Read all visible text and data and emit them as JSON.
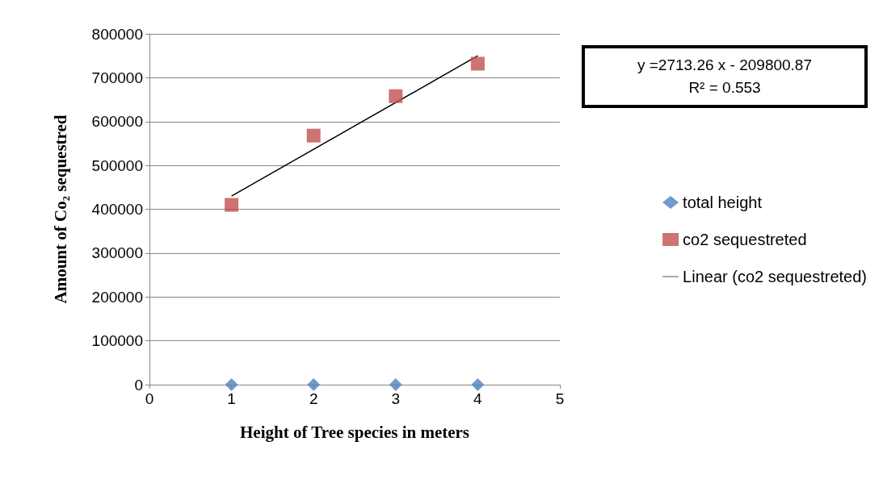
{
  "chart_data": {
    "type": "scatter",
    "xlabel": "Height of Tree species in meters",
    "ylabel": "Amount of Co₂ sequestred",
    "x": [
      1,
      2,
      3,
      4
    ],
    "series": [
      {
        "name": "total height",
        "color": "#4f81bd",
        "marker": "diamond",
        "values": [
          0,
          0,
          0,
          0
        ]
      },
      {
        "name": "co2 sequestreted",
        "color": "#c0504d",
        "marker": "square",
        "values": [
          410000,
          568000,
          658000,
          732000
        ]
      },
      {
        "name": "Linear (co2 sequestreted)",
        "type": "line",
        "color": "#000000",
        "marker": "none",
        "x": [
          1,
          4
        ],
        "values": [
          430000,
          750000
        ]
      }
    ],
    "xlim": [
      0,
      5
    ],
    "xticks": [
      0,
      1,
      2,
      3,
      4,
      5
    ],
    "ylim": [
      0,
      800000
    ],
    "yticks": [
      0,
      100000,
      200000,
      300000,
      400000,
      500000,
      600000,
      700000,
      800000
    ],
    "grid": "y",
    "legend": "right",
    "annotations": [
      "y =2713.26 x - 209800.87",
      "R² = 0.553"
    ]
  }
}
